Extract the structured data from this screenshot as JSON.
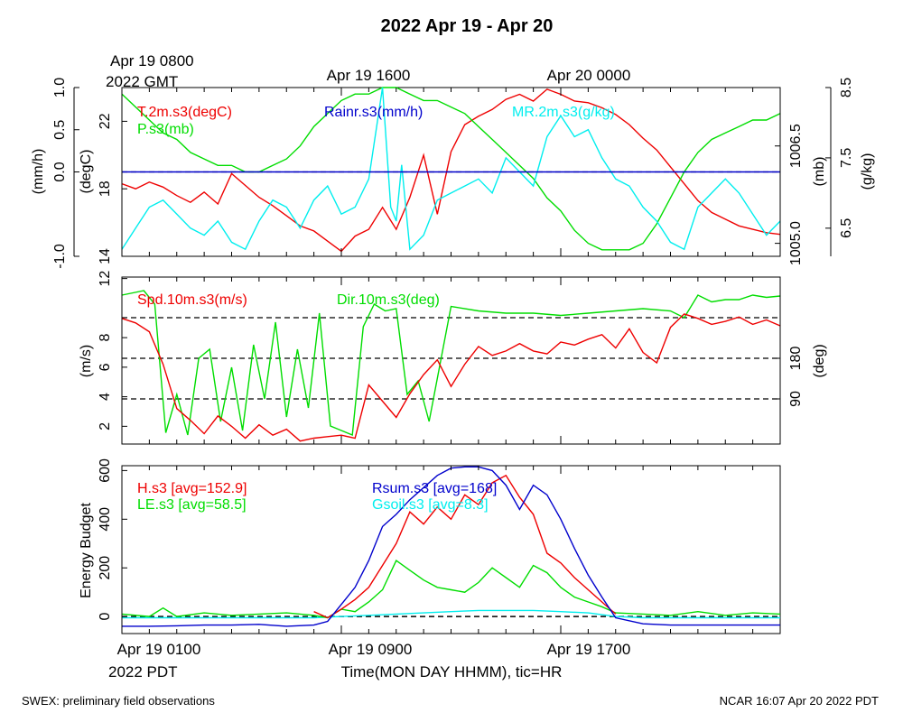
{
  "title": "2022 Apr 19 - Apr 20",
  "top_time_labels": {
    "first_line1": "Apr 19 0800",
    "first_line2": "2022 GMT",
    "second": "Apr 19 1600",
    "third": "Apr 20 0000"
  },
  "bottom_time_labels": {
    "first_line1": "Apr 19 0100",
    "first_line2": "2022 PDT",
    "second": "Apr 19 0900",
    "third": "Apr 19 1700"
  },
  "xlabel": "Time(MON DAY HHMM), tic=HR",
  "footer_left": "SWEX: preliminary field observations",
  "footer_right": "NCAR 16:07 Apr 20 2022 PDT",
  "colors": {
    "red": "#ee0000",
    "green": "#00dd00",
    "blue": "#0000cc",
    "cyan": "#00eeee",
    "black": "#000000"
  },
  "chart_data": [
    {
      "type": "line",
      "panel": "state",
      "xlim": [
        0,
        24
      ],
      "ylim": [
        14,
        24
      ],
      "axes": {
        "rain": {
          "label": "(mm/h)",
          "ticks": [
            "-1.0",
            "0.0",
            "0.5",
            "1.0"
          ],
          "tick_values": [
            -1,
            0,
            0.5,
            1
          ],
          "range": [
            -1,
            1
          ]
        },
        "temp": {
          "label": "(degC)",
          "ticks": [
            "14",
            "18",
            "22"
          ],
          "tick_values": [
            14,
            18,
            22
          ],
          "range": [
            14,
            24
          ]
        },
        "pres": {
          "label": "(mb)",
          "ticks": [
            "1005.0",
            "1006.5"
          ],
          "tick_values": [
            1005,
            1006.5
          ],
          "range": [
            1004.8,
            1007.4
          ]
        },
        "mr": {
          "label": "(g/kg)",
          "ticks": [
            "6.5",
            "7.5",
            "8.5"
          ],
          "tick_values": [
            6.5,
            7.5,
            8.5
          ],
          "range": [
            6.1,
            8.5
          ]
        }
      },
      "zero_line": {
        "value": 0
      },
      "series": [
        {
          "name": "T.2m.s3(degC)",
          "color": "red",
          "axis": "temp",
          "x": [
            0,
            0.5,
            1,
            1.5,
            2,
            2.5,
            3,
            3.5,
            4,
            4.5,
            5,
            5.5,
            6,
            6.5,
            7,
            7.5,
            8,
            8.5,
            9,
            9.5,
            10,
            10.5,
            11,
            11.5,
            12,
            12.5,
            13,
            13.5,
            14,
            14.5,
            15,
            15.5,
            16,
            16.5,
            17,
            17.5,
            18,
            18.5,
            19,
            19.5,
            20,
            20.5,
            21,
            21.5,
            22,
            22.5,
            23,
            23.5,
            24
          ],
          "y": [
            18.3,
            18.0,
            18.4,
            18.1,
            17.6,
            17.2,
            17.8,
            17.1,
            18.9,
            18.2,
            17.5,
            17.0,
            16.4,
            15.8,
            15.5,
            14.9,
            14.3,
            15.2,
            15.6,
            16.9,
            15.6,
            17.5,
            20.0,
            16.5,
            20.2,
            21.8,
            22.3,
            22.7,
            23.3,
            23.6,
            23.2,
            23.9,
            23.6,
            23.2,
            23.1,
            22.8,
            22.4,
            21.8,
            21.0,
            20.3,
            19.3,
            18.3,
            17.3,
            16.6,
            16.2,
            15.8,
            15.6,
            15.4,
            15.3
          ]
        },
        {
          "name": "P.s3(mb)",
          "color": "green",
          "axis": "pres",
          "x": [
            0,
            0.5,
            1,
            1.5,
            2,
            2.5,
            3,
            3.5,
            4,
            4.5,
            5,
            5.5,
            6,
            6.5,
            7,
            7.5,
            8,
            8.5,
            9,
            9.5,
            10,
            10.5,
            11,
            11.5,
            12,
            12.5,
            13,
            13.5,
            14,
            14.5,
            15,
            15.5,
            16,
            16.5,
            17,
            17.5,
            18,
            18.5,
            19,
            19.5,
            20,
            20.5,
            21,
            21.5,
            22,
            22.5,
            23,
            23.5,
            24
          ],
          "y": [
            1007.3,
            1007.1,
            1006.9,
            1006.7,
            1006.6,
            1006.4,
            1006.3,
            1006.2,
            1006.2,
            1006.1,
            1006.1,
            1006.2,
            1006.3,
            1006.5,
            1006.8,
            1007.0,
            1007.2,
            1007.3,
            1007.3,
            1007.4,
            1007.4,
            1007.3,
            1007.2,
            1007.2,
            1007.1,
            1007.0,
            1006.8,
            1006.6,
            1006.4,
            1006.2,
            1006.0,
            1005.7,
            1005.5,
            1005.2,
            1005.0,
            1004.9,
            1004.9,
            1004.9,
            1005.0,
            1005.3,
            1005.7,
            1006.1,
            1006.4,
            1006.6,
            1006.7,
            1006.8,
            1006.9,
            1006.9,
            1007.0
          ]
        },
        {
          "name": "Rainr.s3(mm/h)",
          "color": "blue",
          "axis": "rain",
          "x": [
            0,
            24
          ],
          "y": [
            0,
            0
          ]
        },
        {
          "name": "MR.2m.s3(g/kg)",
          "color": "cyan",
          "axis": "mr",
          "x": [
            0,
            0.5,
            1,
            1.5,
            2,
            2.5,
            3,
            3.5,
            4,
            4.5,
            5,
            5.5,
            6,
            6.5,
            7,
            7.5,
            8,
            8.5,
            9,
            9.5,
            9.8,
            10,
            10.2,
            10.5,
            11,
            11.5,
            12,
            12.5,
            13,
            13.5,
            14,
            14.5,
            15,
            15.5,
            16,
            16.5,
            17,
            17.5,
            18,
            18.5,
            19,
            19.5,
            20,
            20.5,
            21,
            21.5,
            22,
            22.5,
            23,
            23.5,
            24
          ],
          "y": [
            6.2,
            6.5,
            6.8,
            6.9,
            6.7,
            6.5,
            6.4,
            6.6,
            6.3,
            6.2,
            6.6,
            6.9,
            6.8,
            6.5,
            6.9,
            7.1,
            6.7,
            6.8,
            7.2,
            8.5,
            6.8,
            6.6,
            7.4,
            6.2,
            6.4,
            6.9,
            7.0,
            7.1,
            7.2,
            7.0,
            7.5,
            7.3,
            7.1,
            7.8,
            8.1,
            7.8,
            7.9,
            7.5,
            7.2,
            7.1,
            6.8,
            6.6,
            6.3,
            6.2,
            6.8,
            7.0,
            7.2,
            7.0,
            6.7,
            6.4,
            6.6
          ]
        }
      ]
    },
    {
      "type": "line",
      "panel": "wind",
      "xlim": [
        0,
        24
      ],
      "axes": {
        "spd": {
          "label": "(m/s)",
          "ticks": [
            "2",
            "4",
            "6",
            "8",
            "12"
          ],
          "tick_values": [
            2,
            4,
            6,
            8,
            12
          ],
          "range": [
            0.8,
            12.1
          ]
        },
        "dir": {
          "label": "(deg)",
          "ticks": [
            "90",
            "180"
          ],
          "tick_values": [
            90,
            180
          ],
          "range": [
            -10,
            360
          ]
        }
      },
      "dashed_lines": [
        {
          "axis": "dir",
          "value": 90
        },
        {
          "axis": "dir",
          "value": 180
        },
        {
          "axis": "dir",
          "value": 270
        }
      ],
      "series": [
        {
          "name": "Spd.10m.s3(m/s)",
          "color": "red",
          "axis": "spd",
          "x": [
            0,
            0.5,
            1,
            1.5,
            2,
            2.5,
            3,
            3.5,
            4,
            4.5,
            5,
            5.5,
            6,
            6.5,
            7,
            7.5,
            8,
            8.5,
            9,
            9.5,
            10,
            10.5,
            11,
            11.5,
            12,
            12.5,
            13,
            13.5,
            14,
            14.5,
            15,
            15.5,
            16,
            16.5,
            17,
            17.5,
            18,
            18.5,
            19,
            19.5,
            20,
            20.5,
            21,
            21.5,
            22,
            22.5,
            23,
            23.5,
            24
          ],
          "y": [
            9.3,
            9.0,
            8.4,
            6.2,
            3.2,
            2.4,
            1.5,
            2.7,
            2.0,
            1.2,
            2.1,
            1.4,
            1.8,
            1.0,
            1.2,
            1.3,
            1.4,
            1.2,
            4.8,
            3.7,
            2.6,
            4.2,
            5.5,
            6.5,
            4.7,
            6.2,
            7.4,
            6.8,
            7.1,
            7.6,
            7.1,
            6.9,
            7.7,
            7.5,
            7.9,
            8.2,
            7.3,
            8.6,
            7.0,
            6.3,
            8.7,
            9.6,
            9.3,
            8.9,
            9.1,
            9.4,
            8.9,
            9.2,
            8.8
          ]
        },
        {
          "name": "Dir.10m.s3(deg)",
          "color": "green",
          "axis": "dir",
          "x": [
            0,
            0.4,
            0.8,
            1.2,
            1.6,
            2.0,
            2.4,
            2.8,
            3.2,
            3.6,
            4.0,
            4.4,
            4.8,
            5.2,
            5.6,
            6.0,
            6.4,
            6.8,
            7.2,
            7.6,
            8.0,
            8.4,
            8.8,
            9.2,
            9.6,
            10.0,
            10.4,
            10.8,
            11.2,
            12,
            13,
            14,
            15,
            16,
            17,
            18,
            19,
            20,
            20.5,
            21,
            21.5,
            22,
            22.5,
            23,
            23.5,
            24
          ],
          "y": [
            320,
            325,
            330,
            300,
            15,
            100,
            10,
            180,
            200,
            40,
            160,
            20,
            210,
            90,
            260,
            50,
            200,
            70,
            280,
            30,
            20,
            10,
            250,
            300,
            285,
            290,
            100,
            130,
            40,
            295,
            285,
            280,
            280,
            275,
            280,
            285,
            290,
            285,
            270,
            320,
            305,
            310,
            310,
            320,
            315,
            318
          ]
        }
      ]
    },
    {
      "type": "line",
      "panel": "energy",
      "xlim": [
        0,
        24
      ],
      "ylim": [
        -70,
        620
      ],
      "ylabel": "Energy Budget",
      "ticks": [
        "0",
        "200",
        "400",
        "600"
      ],
      "tick_values": [
        0,
        200,
        400,
        600
      ],
      "zero_line": {
        "value": 0
      },
      "series": [
        {
          "name": "H.s3 [avg=152.9]",
          "color": "red",
          "x": [
            7,
            7.5,
            8,
            8.5,
            9,
            9.5,
            10,
            10.5,
            11,
            11.5,
            12,
            12.5,
            13,
            13.5,
            14,
            14.5,
            15,
            15.5,
            16,
            16.5,
            17,
            17.5,
            18
          ],
          "y": [
            20,
            -5,
            30,
            70,
            120,
            210,
            300,
            430,
            380,
            450,
            400,
            500,
            460,
            550,
            580,
            490,
            420,
            260,
            220,
            160,
            110,
            60,
            10
          ]
        },
        {
          "name": "LE.s3 [avg=58.5]",
          "color": "green",
          "x": [
            0,
            1,
            1.5,
            2,
            3,
            4,
            5,
            6,
            7,
            7.5,
            8,
            8.5,
            9,
            9.5,
            10,
            10.5,
            11,
            11.5,
            12,
            12.5,
            13,
            13.5,
            14,
            14.5,
            15,
            15.5,
            16,
            16.5,
            17,
            17.5,
            18,
            19,
            20,
            21,
            22,
            23,
            24
          ],
          "y": [
            10,
            0,
            35,
            0,
            15,
            5,
            10,
            15,
            5,
            -5,
            30,
            20,
            60,
            110,
            230,
            190,
            150,
            120,
            110,
            100,
            140,
            200,
            160,
            120,
            210,
            180,
            120,
            80,
            60,
            40,
            15,
            10,
            5,
            20,
            5,
            15,
            10
          ]
        },
        {
          "name": "Rsum.s3 [avg=168]",
          "color": "blue",
          "x": [
            0,
            1,
            2,
            3,
            4,
            5,
            6,
            7,
            7.5,
            8,
            8.5,
            9,
            9.5,
            10,
            10.5,
            11,
            11.5,
            12,
            12.5,
            13,
            13.5,
            14,
            14.5,
            15,
            15.5,
            16,
            16.5,
            17,
            17.5,
            18,
            19,
            20,
            21,
            22,
            23,
            24
          ],
          "y": [
            -40,
            -40,
            -38,
            -35,
            -35,
            -32,
            -40,
            -35,
            -20,
            50,
            120,
            230,
            370,
            420,
            480,
            530,
            580,
            610,
            615,
            615,
            600,
            540,
            440,
            540,
            500,
            400,
            280,
            170,
            80,
            -5,
            -30,
            -35,
            -35,
            -35,
            -35,
            -35
          ]
        },
        {
          "name": "Gsoil.s3 [avg=8.3]",
          "color": "cyan",
          "x": [
            0,
            2,
            4,
            6,
            7,
            8,
            9,
            10,
            11,
            12,
            13,
            14,
            15,
            16,
            17,
            18,
            19,
            20,
            22,
            24
          ],
          "y": [
            -5,
            -5,
            -5,
            -5,
            -5,
            0,
            5,
            10,
            15,
            20,
            25,
            25,
            25,
            20,
            15,
            0,
            -5,
            -5,
            -5,
            -5
          ]
        }
      ]
    }
  ]
}
